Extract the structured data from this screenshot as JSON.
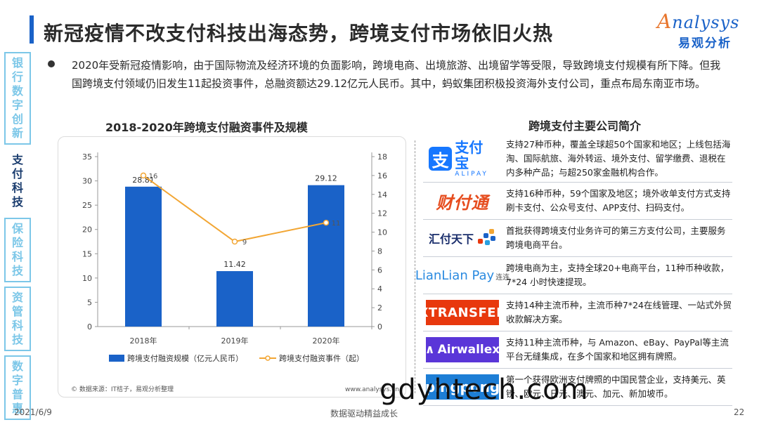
{
  "header": {
    "title": "新冠疫情不改支付科技出海态势，跨境支付市场依旧火热",
    "logo_en_a": "A",
    "logo_en_rest": "nalysys",
    "logo_cn": "易观分析"
  },
  "sidebar": {
    "items": [
      {
        "label": "银行数字创新",
        "chars": [
          "银",
          "行",
          "数",
          "字",
          "创",
          "新"
        ],
        "active": false
      },
      {
        "label": "支付科技",
        "chars": [
          "支",
          "付",
          "科",
          "技"
        ],
        "active": true
      },
      {
        "label": "保险科技",
        "chars": [
          "保",
          "险",
          "科",
          "技"
        ],
        "active": false
      },
      {
        "label": "资管科技",
        "chars": [
          "资",
          "管",
          "科",
          "技"
        ],
        "active": false
      },
      {
        "label": "数字普惠",
        "chars": [
          "数",
          "字",
          "普",
          "惠"
        ],
        "active": false
      }
    ]
  },
  "intro": "2020年受新冠疫情影响，由于国际物流及经济环境的负面影响，跨境电商、出境旅游、出境留学等受限，导致跨境支付规模有所下降。但我国跨境支付领域仍旧发生11起投资事件，总融资额达29.12亿元人民币。其中，蚂蚁集团积极投资海外支付公司，重点布局东南亚市场。",
  "chart_title": "2018-2020年跨境支付融资事件及规模",
  "chart_data": {
    "type": "bar",
    "categories": [
      "2018年",
      "2019年",
      "2020年"
    ],
    "series": [
      {
        "name": "跨境支付融资规模（亿元人民币）",
        "kind": "bar",
        "axis": "left",
        "values": [
          28.81,
          11.42,
          29.12
        ],
        "color": "#1a62c8"
      },
      {
        "name": "跨境支付融资事件（起）",
        "kind": "line",
        "axis": "right",
        "values": [
          16,
          9,
          11
        ],
        "color": "#f2a634"
      }
    ],
    "y_left": {
      "min": 0,
      "max": 35,
      "ticks": [
        0,
        5,
        10,
        15,
        20,
        25,
        30,
        35
      ]
    },
    "y_right": {
      "min": 0,
      "max": 18,
      "ticks": [
        0,
        2,
        4,
        6,
        8,
        10,
        12,
        14,
        16,
        18
      ]
    },
    "source": "© 数据来源：IT桔子，易观分析整理",
    "source_site": "www.analysys.cn",
    "legend_position": "bottom"
  },
  "companies_title": "跨境支付主要公司简介",
  "companies": [
    {
      "name": "支付宝",
      "logo_sub": "ALIPAY",
      "logo_mark": "支",
      "desc": "支持27种币种，覆盖全球超50个国家和地区；上线包括海淘、国际航旅、海外转运、境外支付、留学缴费、退税在内多种产品；与超250家金融机构合作。"
    },
    {
      "name": "财付通",
      "desc": "支持16种币种，59个国家及地区；境外收单支付方式支持刷卡支付、公众号支付、APP支付、扫码支付。"
    },
    {
      "name": "汇付天下",
      "desc": "首批获得跨境支付业务许可的第三方支付公司，主要服务跨境电商平台。"
    },
    {
      "name": "LianLian Pay",
      "logo_cn": "连连",
      "desc": "跨境电商为主，支持全球20+电商平台，11种币种收款，7*24 小时快速提现。"
    },
    {
      "name": "XTRANSFER",
      "desc": "支持14种主流币种，主流币种7*24在线管理、一站式外贸收款解决方案。"
    },
    {
      "name": "Airwallex",
      "desc": "支持11种主流币种，与 Amazon、eBay、PayPal等主流平台无缝集成，在多个国家和地区拥有牌照。"
    },
    {
      "name": "pingpong",
      "desc": "第一个获得欧洲支付牌照的中国民营企业，支持美元、英镑、欧元、日元、澳元、加元、新加坡币。"
    }
  ],
  "watermark": "gdyhtech.com",
  "footer": {
    "date": "2021/6/9",
    "slogan": "数据驱动精益成长",
    "page": "22"
  },
  "colors": {
    "accent": "#1a62c8",
    "line": "#f2a634",
    "sidebar_inactive": "#7cc7e8"
  }
}
